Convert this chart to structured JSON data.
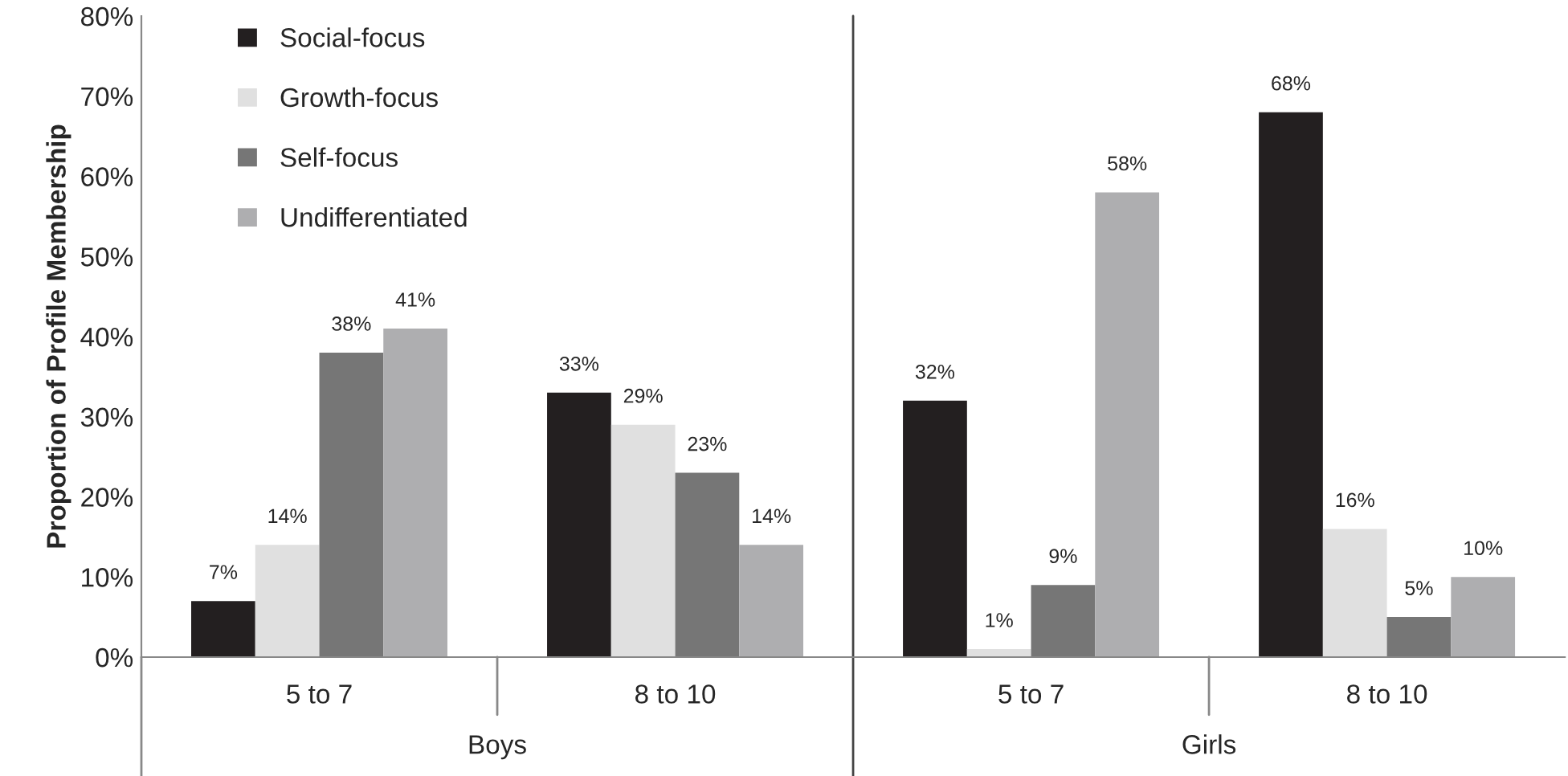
{
  "chart_data": {
    "type": "bar",
    "ylabel": "Proportion of Profile Membership",
    "categories": [
      "5 to 7",
      "8 to 10",
      "5 to 7",
      "8 to 10"
    ],
    "series": [
      {
        "name": "Social-focus",
        "color": "#231f20",
        "values": [
          7,
          33,
          32,
          68
        ],
        "value_labels": [
          "7%",
          "33%",
          "32%",
          "68%"
        ]
      },
      {
        "name": "Growth-focus",
        "color": "#e0e0e0",
        "values": [
          14,
          29,
          1,
          16
        ],
        "value_labels": [
          "14%",
          "29%",
          "1%",
          "16%"
        ]
      },
      {
        "name": "Self-focus",
        "color": "#767676",
        "values": [
          38,
          23,
          9,
          5
        ],
        "value_labels": [
          "38%",
          "23%",
          "9%",
          "5%"
        ]
      },
      {
        "name": "Undifferentiated",
        "color": "#aeaeb0",
        "values": [
          41,
          14,
          58,
          10
        ],
        "value_labels": [
          "41%",
          "14%",
          "58%",
          "10%"
        ]
      }
    ],
    "ylim": [
      0,
      80
    ],
    "yticks": [
      {
        "value": 0,
        "label": "0%"
      },
      {
        "value": 10,
        "label": "10%"
      },
      {
        "value": 20,
        "label": "20%"
      },
      {
        "value": 30,
        "label": "30%"
      },
      {
        "value": 40,
        "label": "40%"
      },
      {
        "value": 50,
        "label": "50%"
      },
      {
        "value": 60,
        "label": "60%"
      },
      {
        "value": 70,
        "label": "70%"
      },
      {
        "value": 80,
        "label": "80%"
      }
    ],
    "annotations": [
      "Boys",
      "Girls"
    ],
    "legend": "top left",
    "grid": false
  }
}
